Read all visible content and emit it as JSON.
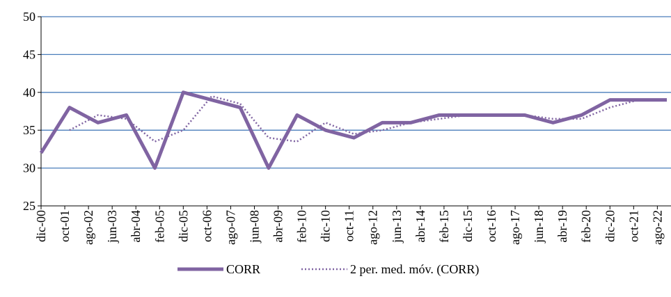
{
  "chart_data": {
    "type": "line",
    "x": [
      "2000-12",
      "2001-12",
      "2002-12",
      "2003-12",
      "2004-12",
      "2005-12",
      "2006-12",
      "2007-12",
      "2008-12",
      "2009-12",
      "2010-12",
      "2011-12",
      "2012-12",
      "2013-12",
      "2014-12",
      "2015-12",
      "2016-12",
      "2017-12",
      "2018-12",
      "2019-12",
      "2020-12",
      "2021-12",
      "2022-12"
    ],
    "series": [
      {
        "name": "CORR",
        "color": "#8064a2",
        "style": "solid",
        "values": [
          32,
          38,
          36,
          37,
          30,
          40,
          39,
          38,
          30,
          37,
          35,
          34,
          36,
          36,
          37,
          37,
          37,
          37,
          36,
          37,
          39,
          39,
          39
        ]
      },
      {
        "name": "2 per. med. móv. (CORR)",
        "color": "#8064a2",
        "style": "dotted",
        "values": [
          null,
          35,
          37,
          36.5,
          33.5,
          35,
          39.5,
          38.5,
          34,
          33.5,
          36,
          34.5,
          35,
          36,
          36.5,
          37,
          37,
          37,
          36.5,
          36.5,
          38,
          39,
          39
        ]
      }
    ],
    "xlim": [
      "2000-12",
      "2022-12"
    ],
    "xticks": [
      {
        "value": "2000-12",
        "label": "dic-00"
      },
      {
        "value": "2001-10",
        "label": "oct-01"
      },
      {
        "value": "2002-08",
        "label": "ago-02"
      },
      {
        "value": "2003-06",
        "label": "jun-03"
      },
      {
        "value": "2004-04",
        "label": "abr-04"
      },
      {
        "value": "2005-02",
        "label": "feb-05"
      },
      {
        "value": "2005-12",
        "label": "dic-05"
      },
      {
        "value": "2006-10",
        "label": "oct-06"
      },
      {
        "value": "2007-08",
        "label": "ago-07"
      },
      {
        "value": "2008-06",
        "label": "jun-08"
      },
      {
        "value": "2009-04",
        "label": "abr-09"
      },
      {
        "value": "2010-02",
        "label": "feb-10"
      },
      {
        "value": "2010-12",
        "label": "dic-10"
      },
      {
        "value": "2011-10",
        "label": "oct-11"
      },
      {
        "value": "2012-08",
        "label": "ago-12"
      },
      {
        "value": "2013-06",
        "label": "jun-13"
      },
      {
        "value": "2014-04",
        "label": "abr-14"
      },
      {
        "value": "2015-02",
        "label": "feb-15"
      },
      {
        "value": "2015-12",
        "label": "dic-15"
      },
      {
        "value": "2016-10",
        "label": "oct-16"
      },
      {
        "value": "2017-08",
        "label": "ago-17"
      },
      {
        "value": "2018-06",
        "label": "jun-18"
      },
      {
        "value": "2019-04",
        "label": "abr-19"
      },
      {
        "value": "2020-02",
        "label": "feb-20"
      },
      {
        "value": "2020-12",
        "label": "dic-20"
      },
      {
        "value": "2021-10",
        "label": "oct-21"
      },
      {
        "value": "2022-08",
        "label": "ago-22"
      }
    ],
    "ylim": [
      25,
      50
    ],
    "yticks": [
      25,
      30,
      35,
      40,
      45,
      50
    ],
    "grid": true,
    "grid_color": "#4a7ebb",
    "legend": "bottom"
  }
}
